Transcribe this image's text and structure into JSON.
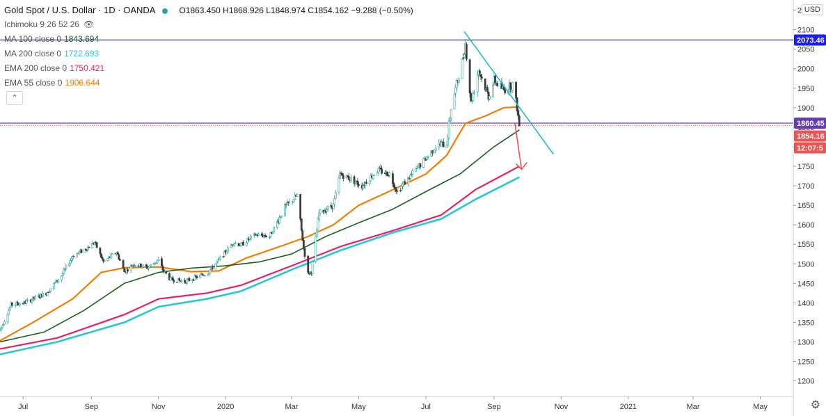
{
  "header": {
    "symbol_title": "Gold Spot / U.S. Dollar · 1D · OANDA",
    "ohlc": "O1863.450 H1868.926 L1848.974 C1854.162 −9.288 (−0.50%)"
  },
  "indicators": [
    {
      "label": "Ichimoku 9 26 52 26",
      "value": "",
      "color": "#8a8f99"
    },
    {
      "label": "MA 100 close 0",
      "value": "1843.694",
      "color": "#1b5e20"
    },
    {
      "label": "MA 200 close 0",
      "value": "1722.693",
      "color": "#26c6da"
    },
    {
      "label": "EMA 200 close 0",
      "value": "1750.421",
      "color": "#e91e63"
    },
    {
      "label": "EMA 55 close 0",
      "value": "1906.644",
      "color": "#f57c00"
    }
  ],
  "currency_button": "USD",
  "chart_data": {
    "type": "line",
    "title": "Gold Spot / U.S. Dollar · 1D · OANDA",
    "x_tick_labels": [
      "Jul",
      "Sep",
      "Nov",
      "2020",
      "Mar",
      "May",
      "Jul",
      "Sep",
      "Nov",
      "2021",
      "Mar",
      "May"
    ],
    "x_ticks": [
      {
        "label": "Jul",
        "date": "2019-07-01"
      },
      {
        "label": "Sep",
        "date": "2019-09-01"
      },
      {
        "label": "Nov",
        "date": "2019-11-01"
      },
      {
        "label": "2020",
        "date": "2020-01-01"
      },
      {
        "label": "Mar",
        "date": "2020-03-01"
      },
      {
        "label": "May",
        "date": "2020-05-01"
      },
      {
        "label": "Jul",
        "date": "2020-07-01"
      },
      {
        "label": "Sep",
        "date": "2020-09-01"
      },
      {
        "label": "Nov",
        "date": "2020-11-01"
      },
      {
        "label": "2021",
        "date": "2021-01-01"
      },
      {
        "label": "Mar",
        "date": "2021-03-01"
      },
      {
        "label": "May",
        "date": "2021-05-01"
      }
    ],
    "x_range": [
      "2019-06-10",
      "2021-05-31"
    ],
    "y_ticks": [
      1200,
      1250,
      1300,
      1350,
      1400,
      1450,
      1500,
      1550,
      1600,
      1650,
      1700,
      1750,
      1800,
      1850,
      1900,
      1950,
      2000,
      2050,
      2100,
      2150
    ],
    "ylim": [
      1160,
      2176
    ],
    "price_labels": [
      {
        "value": 2073.46,
        "text": "2073.46",
        "color": "#1a1aff"
      },
      {
        "value": 1860.45,
        "text": "1860.45",
        "color": "#673ab7"
      },
      {
        "value": 1854.16,
        "text": "1854.16",
        "color": "#ef5350"
      },
      {
        "label_for": 1854.16,
        "text": "12:07:5",
        "color": "#ef5350"
      }
    ],
    "horizontal_lines": [
      {
        "value": 2073.46,
        "color": "#1a1aff"
      },
      {
        "value": 1860.45,
        "color": "#673ab7"
      }
    ],
    "price_path": [
      [
        "2019-06-10",
        1330
      ],
      [
        "2019-06-20",
        1395
      ],
      [
        "2019-07-02",
        1400
      ],
      [
        "2019-07-10",
        1410
      ],
      [
        "2019-07-22",
        1425
      ],
      [
        "2019-08-05",
        1470
      ],
      [
        "2019-08-15",
        1520
      ],
      [
        "2019-08-28",
        1540
      ],
      [
        "2019-09-04",
        1555
      ],
      [
        "2019-09-12",
        1505
      ],
      [
        "2019-09-24",
        1530
      ],
      [
        "2019-10-01",
        1480
      ],
      [
        "2019-10-10",
        1500
      ],
      [
        "2019-10-22",
        1490
      ],
      [
        "2019-11-01",
        1510
      ],
      [
        "2019-11-05",
        1485
      ],
      [
        "2019-11-12",
        1460
      ],
      [
        "2019-11-25",
        1455
      ],
      [
        "2019-12-05",
        1465
      ],
      [
        "2019-12-16",
        1478
      ],
      [
        "2019-12-26",
        1510
      ],
      [
        "2020-01-08",
        1555
      ],
      [
        "2020-01-15",
        1548
      ],
      [
        "2020-01-28",
        1575
      ],
      [
        "2020-02-10",
        1570
      ],
      [
        "2020-02-24",
        1645
      ],
      [
        "2020-03-06",
        1675
      ],
      [
        "2020-03-12",
        1540
      ],
      [
        "2020-03-16",
        1475
      ],
      [
        "2020-03-19",
        1480
      ],
      [
        "2020-03-26",
        1630
      ],
      [
        "2020-04-08",
        1650
      ],
      [
        "2020-04-14",
        1730
      ],
      [
        "2020-04-22",
        1720
      ],
      [
        "2020-05-04",
        1700
      ],
      [
        "2020-05-18",
        1740
      ],
      [
        "2020-05-29",
        1730
      ],
      [
        "2020-06-05",
        1685
      ],
      [
        "2020-06-17",
        1725
      ],
      [
        "2020-07-01",
        1770
      ],
      [
        "2020-07-10",
        1800
      ],
      [
        "2020-07-20",
        1810
      ],
      [
        "2020-07-24",
        1900
      ],
      [
        "2020-07-29",
        1960
      ],
      [
        "2020-08-04",
        2030
      ],
      [
        "2020-08-06",
        2065
      ],
      [
        "2020-08-11",
        1912
      ],
      [
        "2020-08-18",
        1998
      ],
      [
        "2020-08-27",
        1930
      ],
      [
        "2020-09-01",
        1970
      ],
      [
        "2020-09-10",
        1945
      ],
      [
        "2020-09-18",
        1960
      ],
      [
        "2020-09-22",
        1900
      ],
      [
        "2020-09-24",
        1854
      ]
    ],
    "series": [
      {
        "name": "EMA 55",
        "color": "#f57c00",
        "width": 2.2,
        "values": [
          [
            "2019-06-10",
            1303
          ],
          [
            "2019-07-10",
            1350
          ],
          [
            "2019-08-15",
            1410
          ],
          [
            "2019-09-10",
            1478
          ],
          [
            "2019-10-01",
            1490
          ],
          [
            "2019-11-01",
            1492
          ],
          [
            "2019-12-01",
            1480
          ],
          [
            "2019-12-26",
            1482
          ],
          [
            "2020-01-20",
            1515
          ],
          [
            "2020-02-20",
            1545
          ],
          [
            "2020-03-16",
            1570
          ],
          [
            "2020-04-08",
            1600
          ],
          [
            "2020-05-01",
            1650
          ],
          [
            "2020-06-01",
            1690
          ],
          [
            "2020-07-01",
            1730
          ],
          [
            "2020-07-20",
            1778
          ],
          [
            "2020-08-06",
            1860
          ],
          [
            "2020-08-25",
            1880
          ],
          [
            "2020-09-10",
            1900
          ],
          [
            "2020-09-24",
            1902
          ]
        ]
      },
      {
        "name": "MA 100",
        "color": "#1b5e20",
        "width": 1.6,
        "values": [
          [
            "2019-06-10",
            1300
          ],
          [
            "2019-07-20",
            1325
          ],
          [
            "2019-08-25",
            1380
          ],
          [
            "2019-10-01",
            1450
          ],
          [
            "2019-11-01",
            1478
          ],
          [
            "2019-12-01",
            1489
          ],
          [
            "2020-01-01",
            1495
          ],
          [
            "2020-02-01",
            1505
          ],
          [
            "2020-03-01",
            1525
          ],
          [
            "2020-04-01",
            1570
          ],
          [
            "2020-05-01",
            1605
          ],
          [
            "2020-06-01",
            1640
          ],
          [
            "2020-07-01",
            1685
          ],
          [
            "2020-08-01",
            1730
          ],
          [
            "2020-09-01",
            1800
          ],
          [
            "2020-09-24",
            1843
          ]
        ]
      },
      {
        "name": "EMA 200",
        "color": "#e91e63",
        "width": 2.2,
        "values": [
          [
            "2019-06-10",
            1282
          ],
          [
            "2019-08-01",
            1310
          ],
          [
            "2019-10-01",
            1370
          ],
          [
            "2019-11-01",
            1410
          ],
          [
            "2019-12-15",
            1425
          ],
          [
            "2020-01-15",
            1445
          ],
          [
            "2020-03-01",
            1495
          ],
          [
            "2020-04-15",
            1545
          ],
          [
            "2020-06-01",
            1585
          ],
          [
            "2020-07-15",
            1625
          ],
          [
            "2020-08-15",
            1690
          ],
          [
            "2020-09-24",
            1750
          ]
        ]
      },
      {
        "name": "MA 200",
        "color": "#26c6da",
        "width": 2.6,
        "values": [
          [
            "2019-06-10",
            1268
          ],
          [
            "2019-08-01",
            1300
          ],
          [
            "2019-10-01",
            1350
          ],
          [
            "2019-11-01",
            1390
          ],
          [
            "2019-12-15",
            1410
          ],
          [
            "2020-01-15",
            1430
          ],
          [
            "2020-03-01",
            1485
          ],
          [
            "2020-04-15",
            1535
          ],
          [
            "2020-06-01",
            1580
          ],
          [
            "2020-07-15",
            1615
          ],
          [
            "2020-08-15",
            1665
          ],
          [
            "2020-09-24",
            1722
          ]
        ]
      }
    ],
    "trendline": {
      "color": "#26b5d8",
      "from": [
        "2020-08-05",
        2095
      ],
      "to": [
        "2020-10-25",
        1781
      ]
    },
    "arrow": {
      "color": "#ef5350",
      "from": [
        "2020-09-20",
        1860
      ],
      "to": [
        "2020-09-26",
        1742
      ]
    },
    "grid": false,
    "legend_position": "top-left"
  }
}
